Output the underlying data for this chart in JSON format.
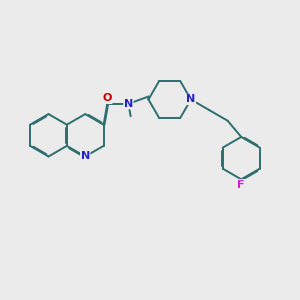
{
  "bg_color": "#ebebeb",
  "bond_color": "#2d6e6e",
  "nitrogen_color": "#2222cc",
  "oxygen_color": "#cc0000",
  "fluorine_color": "#cc22cc",
  "line_width": 1.4,
  "dbo": 0.03,
  "figsize": [
    3.0,
    3.0
  ],
  "dpi": 100,
  "xlim": [
    0,
    10
  ],
  "ylim": [
    0,
    10
  ]
}
